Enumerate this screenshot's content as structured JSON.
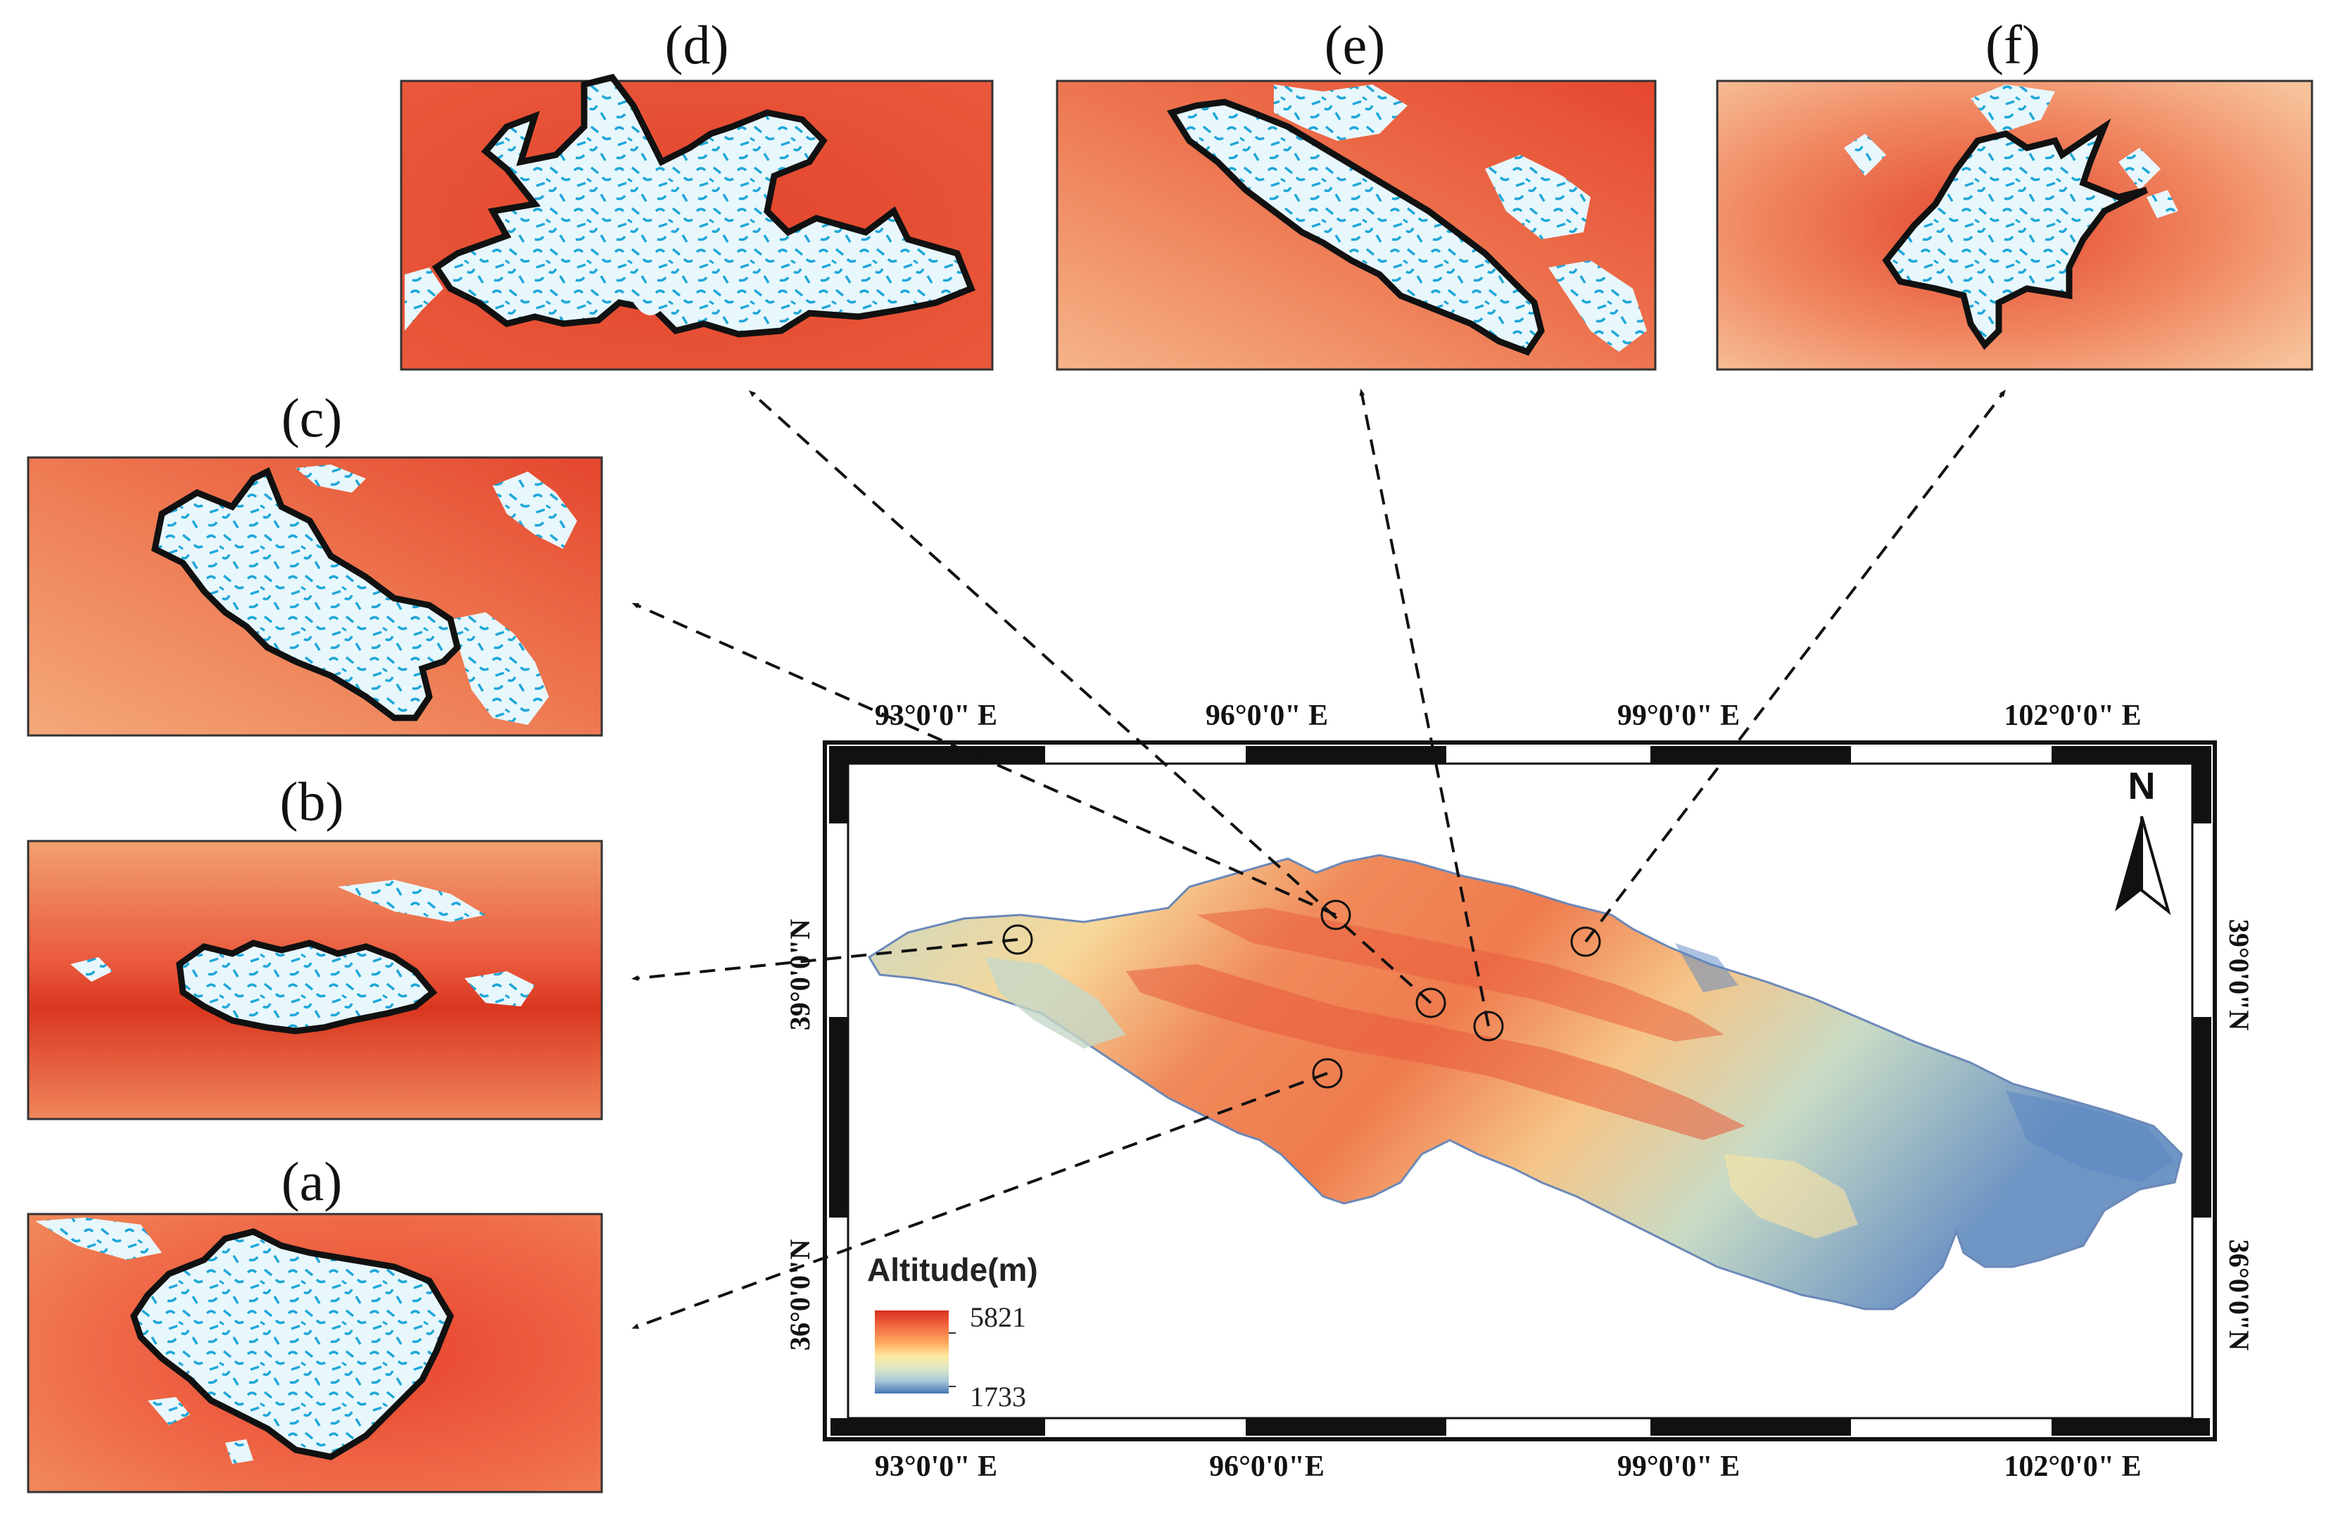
{
  "panels": [
    {
      "id": "a",
      "label": "(a)"
    },
    {
      "id": "b",
      "label": "(b)"
    },
    {
      "id": "c",
      "label": "(c)"
    },
    {
      "id": "d",
      "label": "(d)"
    },
    {
      "id": "e",
      "label": "(e)"
    },
    {
      "id": "f",
      "label": "(f)"
    }
  ],
  "map": {
    "top_ticks": [
      "93°0′0″ E",
      "96°0′0″ E",
      "99°0′0″ E",
      "102°0′0″ E"
    ],
    "top_ticks_display": [
      "93°0'0\" E",
      "96°0'0\" E",
      "99°0'0\" E",
      "102°0'0\" E"
    ],
    "bottom_ticks_display": [
      "93°0'0\" E",
      "96°0'0\"E",
      "99°0'0\" E",
      "102°0'0\" E"
    ],
    "left_ticks_display": [
      "39°0'0\"N",
      "36°0'0\"N"
    ],
    "right_ticks_display": [
      "39°0'0\"N",
      "36°0'0\"N"
    ],
    "north_label": "N"
  },
  "legend": {
    "title": "Altitude(m)",
    "max_label": "5821",
    "min_label": "1733",
    "colors": [
      "#d7301f",
      "#f46d43",
      "#fdae61",
      "#fee8a0",
      "#d9e7c4",
      "#a9c8d8",
      "#4575b4"
    ]
  },
  "colors": {
    "glacier_fill": "#e6f6fb",
    "glacier_pattern": "#1ea7d9",
    "dem_high": "#d7301f",
    "dem_low": "#4575b4"
  }
}
